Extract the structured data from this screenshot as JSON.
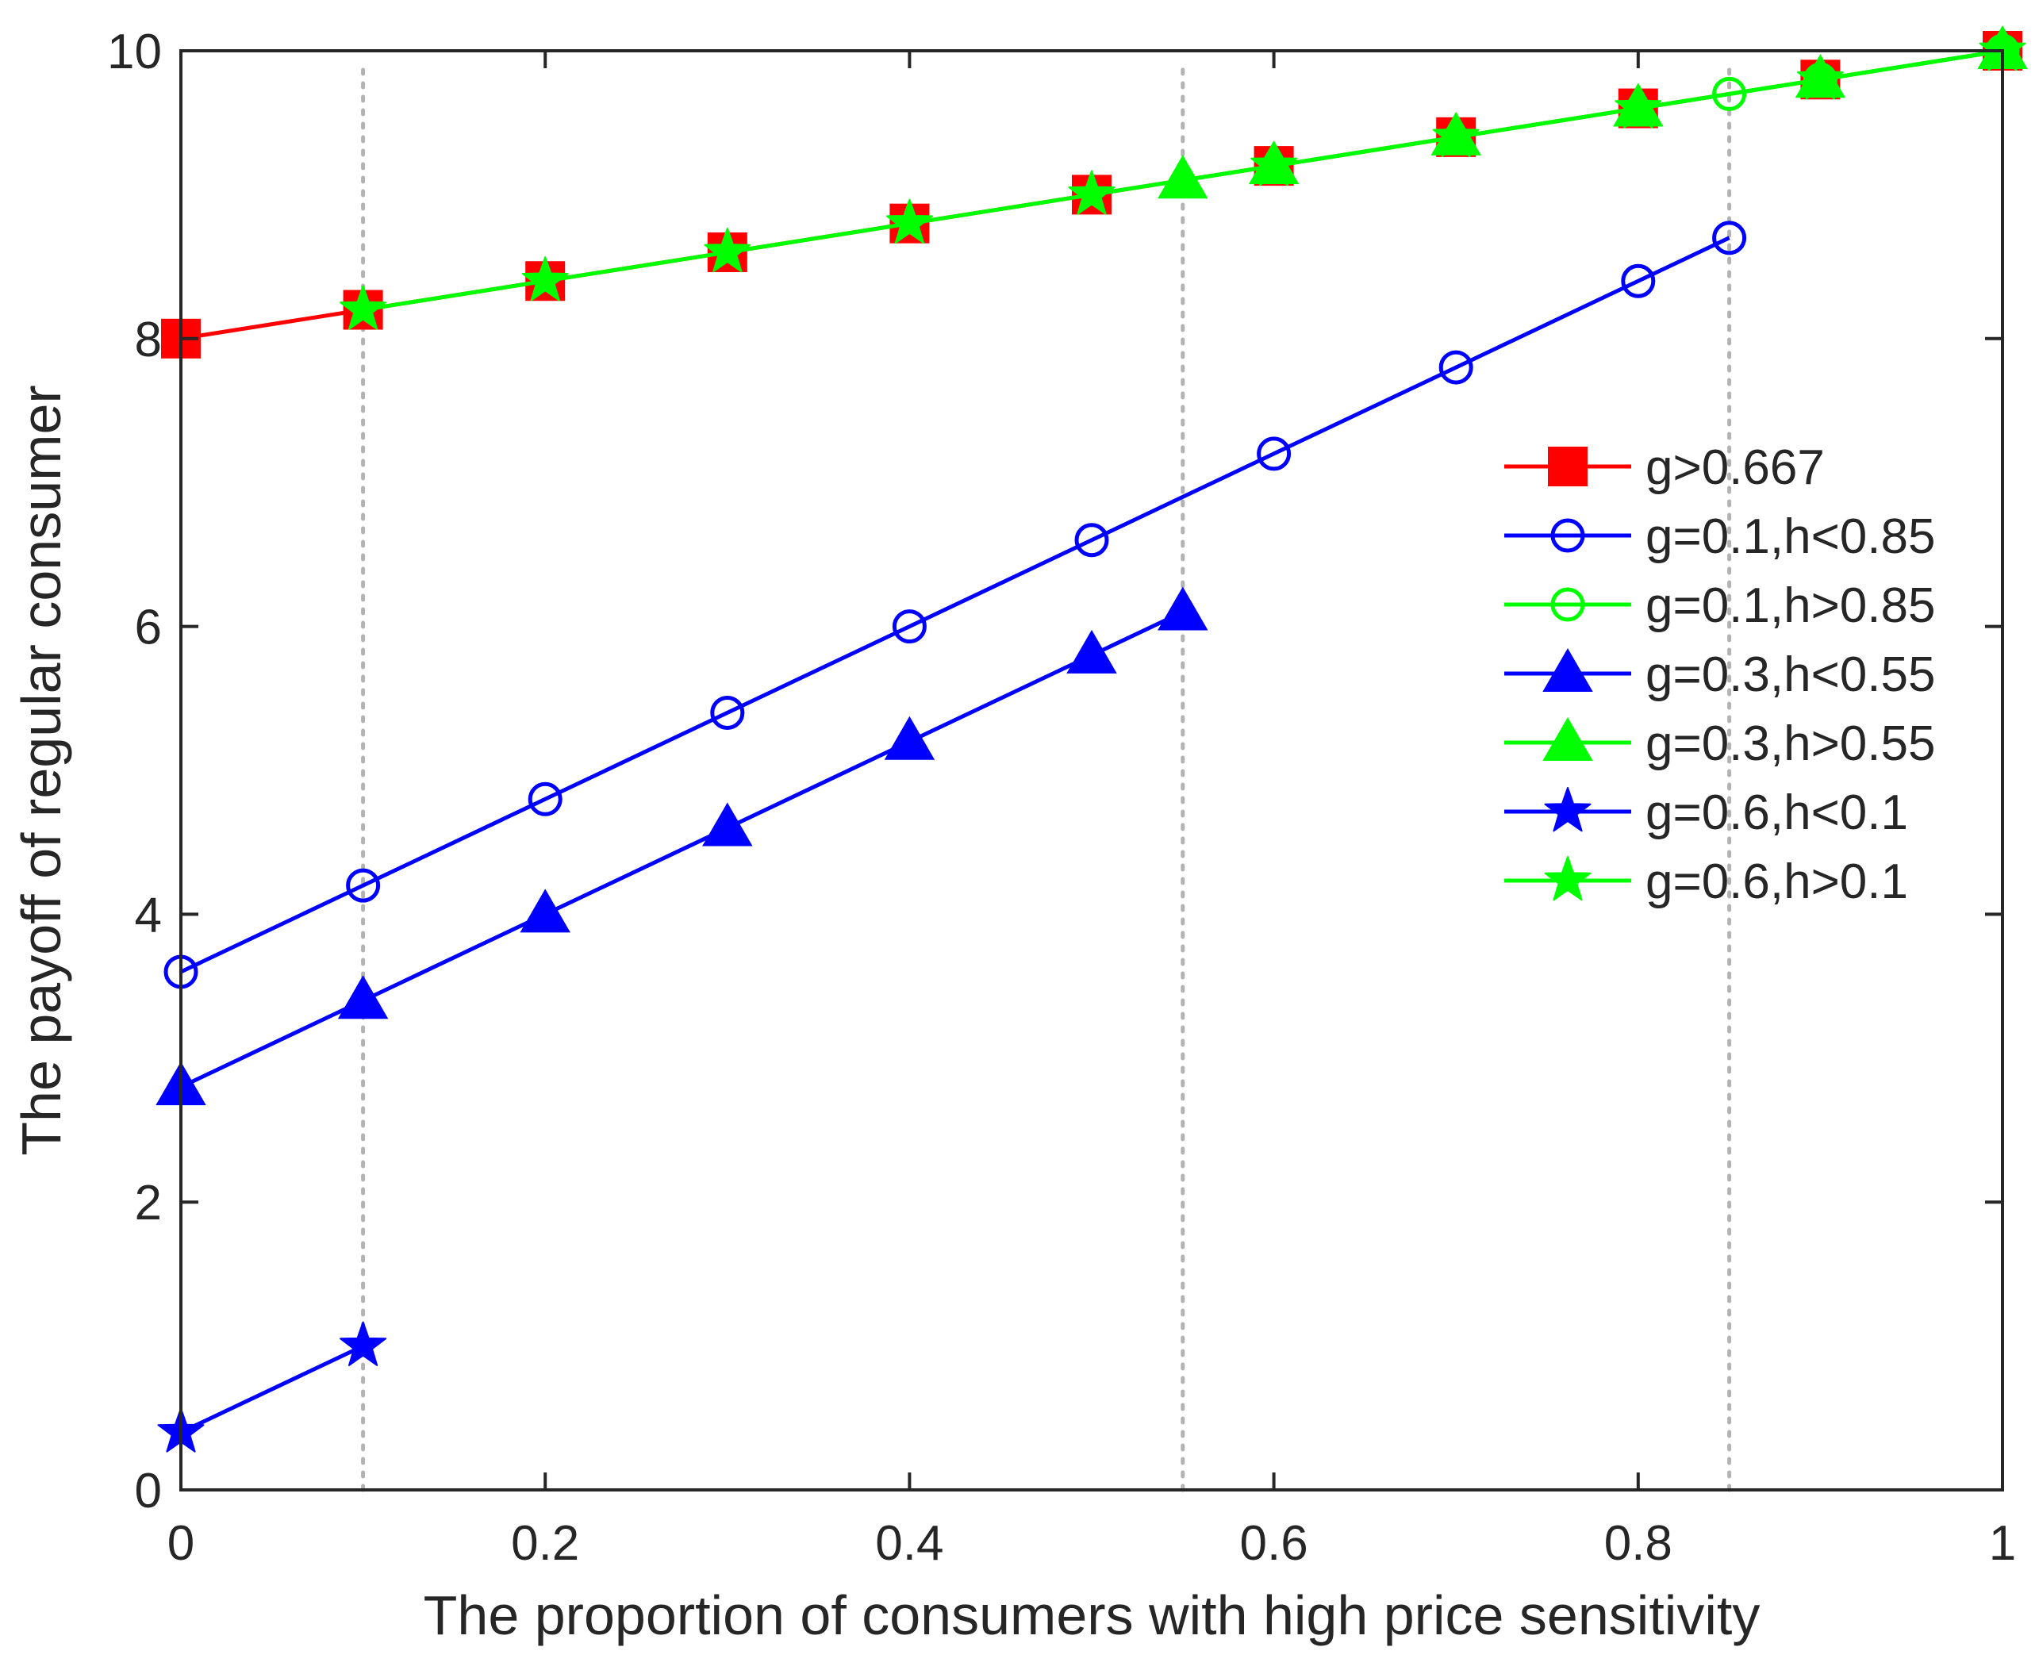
{
  "chart_data": {
    "type": "line",
    "title": "",
    "xlabel": "The proportion of consumers with high price sensitivity",
    "ylabel": "The payoff of regular consumer",
    "xlim": [
      0,
      1
    ],
    "ylim": [
      0,
      10
    ],
    "xticks": [
      0,
      0.2,
      0.4,
      0.6,
      0.8,
      1
    ],
    "xtick_labels": [
      "0",
      "0.2",
      "0.4",
      "0.6",
      "0.8",
      "1"
    ],
    "yticks": [
      0,
      2,
      4,
      6,
      8,
      10
    ],
    "ytick_labels": [
      "0",
      "2",
      "4",
      "6",
      "8",
      "10"
    ],
    "grid": false,
    "legend_position": "right",
    "reference_lines_x": [
      0.1,
      0.55,
      0.85
    ],
    "reference_line_ymax": 9.9,
    "series": [
      {
        "name": "g>0.667",
        "color": "#ff0000",
        "marker": "square",
        "x": [
          0,
          0.1,
          0.2,
          0.3,
          0.4,
          0.5,
          0.6,
          0.7,
          0.8,
          0.9,
          1.0
        ],
        "y": [
          8.0,
          8.2,
          8.4,
          8.6,
          8.8,
          9.0,
          9.2,
          9.4,
          9.6,
          9.8,
          10.0
        ]
      },
      {
        "name": "g=0.1,h<0.85",
        "color": "#0000ff",
        "marker": "circle",
        "x": [
          0,
          0.1,
          0.2,
          0.3,
          0.4,
          0.5,
          0.6,
          0.7,
          0.8,
          0.85
        ],
        "y": [
          3.6,
          4.2,
          4.8,
          5.4,
          6.0,
          6.6,
          7.2,
          7.8,
          8.4,
          8.7
        ]
      },
      {
        "name": "g=0.1,h>0.85",
        "color": "#00ff00",
        "marker": "circle",
        "x": [
          0.85,
          0.9,
          1.0
        ],
        "y": [
          9.7,
          9.8,
          10.0
        ]
      },
      {
        "name": "g=0.3,h<0.55",
        "color": "#0000ff",
        "marker": "triangle",
        "x": [
          0,
          0.1,
          0.2,
          0.3,
          0.4,
          0.5,
          0.55
        ],
        "y": [
          2.8,
          3.4,
          4.0,
          4.6,
          5.2,
          5.8,
          6.1
        ]
      },
      {
        "name": "g=0.3,h>0.55",
        "color": "#00ff00",
        "marker": "triangle",
        "x": [
          0.55,
          0.6,
          0.7,
          0.8,
          0.9,
          1.0
        ],
        "y": [
          9.1,
          9.2,
          9.4,
          9.6,
          9.8,
          10.0
        ]
      },
      {
        "name": "g=0.6,h<0.1",
        "color": "#0000ff",
        "marker": "star",
        "x": [
          0,
          0.1
        ],
        "y": [
          0.4,
          1.0
        ]
      },
      {
        "name": "g=0.6,h>0.1",
        "color": "#00ff00",
        "marker": "star",
        "x": [
          0.1,
          0.2,
          0.3,
          0.4,
          0.5,
          0.6,
          0.7,
          0.8,
          0.9,
          1.0
        ],
        "y": [
          8.2,
          8.4,
          8.6,
          8.8,
          9.0,
          9.2,
          9.4,
          9.6,
          9.8,
          10.0
        ]
      }
    ]
  }
}
